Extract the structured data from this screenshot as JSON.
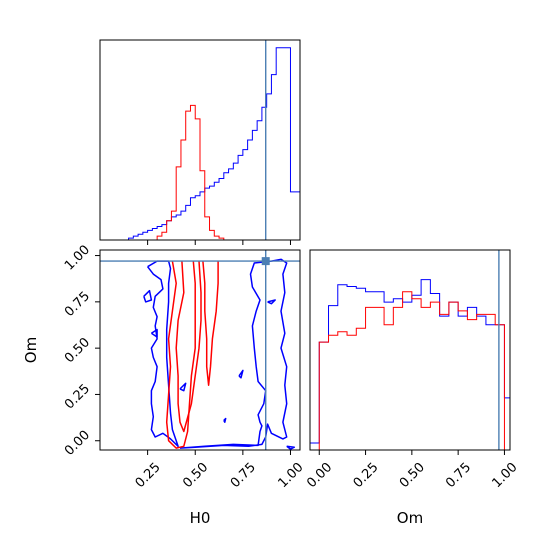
{
  "chart_data": [
    {
      "type": "histogram",
      "panel": "H0 marginal",
      "xlim": [
        0.0,
        1.05
      ],
      "x_ticks": [
        0.25,
        0.5,
        0.75,
        1.0
      ],
      "truth": 0.87,
      "series": [
        {
          "color": "#0000ff",
          "bin_edges": [
            0.15,
            0.175,
            0.2,
            0.225,
            0.25,
            0.275,
            0.3,
            0.325,
            0.35,
            0.375,
            0.4,
            0.425,
            0.45,
            0.475,
            0.5,
            0.525,
            0.55,
            0.575,
            0.6,
            0.625,
            0.65,
            0.675,
            0.7,
            0.725,
            0.75,
            0.775,
            0.8,
            0.825,
            0.85,
            0.875,
            0.9,
            0.925,
            0.95,
            0.975,
            1.0,
            1.025,
            1.05
          ],
          "values": [
            0.01,
            0.02,
            0.03,
            0.04,
            0.05,
            0.06,
            0.07,
            0.08,
            0.1,
            0.12,
            0.13,
            0.15,
            0.18,
            0.22,
            0.23,
            0.25,
            0.27,
            0.28,
            0.3,
            0.32,
            0.35,
            0.37,
            0.4,
            0.44,
            0.47,
            0.52,
            0.57,
            0.62,
            0.69,
            0.76,
            0.86,
            1.0,
            1.0,
            1.0,
            0.25,
            0.25
          ]
        },
        {
          "color": "#ff0000",
          "bin_edges": [
            0.3,
            0.325,
            0.35,
            0.375,
            0.4,
            0.425,
            0.45,
            0.475,
            0.5,
            0.525,
            0.55,
            0.575,
            0.6,
            0.625,
            0.65
          ],
          "values": [
            0.02,
            0.04,
            0.1,
            0.15,
            0.38,
            0.52,
            0.67,
            0.7,
            0.63,
            0.36,
            0.12,
            0.05,
            0.02,
            0.01
          ]
        }
      ]
    },
    {
      "type": "contour",
      "panel": "H0 vs Om joint",
      "xlabel": "H0",
      "ylabel": "Om",
      "xlim": [
        0.0,
        1.05
      ],
      "ylim": [
        -0.05,
        1.03
      ],
      "x_ticks": [
        0.25,
        0.5,
        0.75,
        1.0
      ],
      "x_tick_labels": [
        "0.25",
        "0.50",
        "0.75",
        "1.00"
      ],
      "y_ticks": [
        0.0,
        0.25,
        0.5,
        0.75,
        1.0
      ],
      "y_tick_labels": [
        "0.00",
        "0.25",
        "0.50",
        "0.75",
        "1.00"
      ],
      "truth": {
        "x": 0.87,
        "y": 0.97
      },
      "series": [
        {
          "color": "#0000ff",
          "contours": [
            [
              [
                0.25,
                0.94
              ],
              [
                0.28,
                0.9
              ],
              [
                0.32,
                0.87
              ],
              [
                0.33,
                0.82
              ],
              [
                0.29,
                0.78
              ],
              [
                0.28,
                0.72
              ],
              [
                0.3,
                0.67
              ],
              [
                0.29,
                0.62
              ],
              [
                0.3,
                0.55
              ],
              [
                0.27,
                0.5
              ],
              [
                0.28,
                0.45
              ],
              [
                0.3,
                0.4
              ],
              [
                0.29,
                0.32
              ],
              [
                0.27,
                0.27
              ],
              [
                0.27,
                0.2
              ],
              [
                0.28,
                0.13
              ],
              [
                0.27,
                0.06
              ],
              [
                0.29,
                0.02
              ],
              [
                0.33,
                0.04
              ],
              [
                0.37,
                0.01
              ],
              [
                0.41,
                -0.03
              ],
              [
                0.38,
                0.06
              ],
              [
                0.37,
                0.15
              ],
              [
                0.36,
                0.3
              ],
              [
                0.35,
                0.45
              ],
              [
                0.35,
                0.6
              ],
              [
                0.36,
                0.75
              ],
              [
                0.36,
                0.85
              ],
              [
                0.37,
                0.93
              ],
              [
                0.36,
                0.97
              ],
              [
                0.3,
                0.97
              ],
              [
                0.25,
                0.94
              ]
            ],
            [
              [
                0.42,
                -0.04
              ],
              [
                0.55,
                -0.03
              ],
              [
                0.7,
                -0.02
              ],
              [
                0.83,
                -0.025
              ],
              [
                0.84,
                0.05
              ],
              [
                0.85,
                0.08
              ],
              [
                0.84,
                0.1
              ],
              [
                0.83,
                0.14
              ],
              [
                0.86,
                0.2
              ],
              [
                0.87,
                0.27
              ],
              [
                0.83,
                0.32
              ],
              [
                0.82,
                0.4
              ],
              [
                0.81,
                0.5
              ],
              [
                0.8,
                0.62
              ],
              [
                0.82,
                0.7
              ],
              [
                0.84,
                0.76
              ],
              [
                0.8,
                0.83
              ],
              [
                0.79,
                0.9
              ],
              [
                0.81,
                0.96
              ],
              [
                0.9,
                0.97
              ],
              [
                0.95,
                0.98
              ],
              [
                0.98,
                0.96
              ],
              [
                0.96,
                0.9
              ],
              [
                0.97,
                0.8
              ],
              [
                0.95,
                0.7
              ],
              [
                0.97,
                0.58
              ],
              [
                0.95,
                0.5
              ],
              [
                0.98,
                0.4
              ],
              [
                0.97,
                0.3
              ],
              [
                0.98,
                0.2
              ],
              [
                0.96,
                0.1
              ],
              [
                0.98,
                0.02
              ],
              [
                0.96,
                0.01
              ],
              [
                0.9,
                0.04
              ],
              [
                0.88,
                0.09
              ],
              [
                0.87,
                0.02
              ],
              [
                0.85,
                -0.02
              ],
              [
                0.78,
                -0.03
              ],
              [
                0.65,
                -0.025
              ],
              [
                0.5,
                -0.035
              ],
              [
                0.42,
                -0.04
              ]
            ],
            [
              [
                0.23,
                0.78
              ],
              [
                0.26,
                0.81
              ],
              [
                0.27,
                0.76
              ],
              [
                0.24,
                0.75
              ],
              [
                0.23,
                0.78
              ]
            ],
            [
              [
                0.27,
                0.58
              ],
              [
                0.3,
                0.6
              ],
              [
                0.3,
                0.56
              ],
              [
                0.27,
                0.58
              ]
            ],
            [
              [
                0.42,
                0.28
              ],
              [
                0.45,
                0.31
              ],
              [
                0.44,
                0.27
              ],
              [
                0.42,
                0.28
              ]
            ],
            [
              [
                0.73,
                0.35
              ],
              [
                0.75,
                0.38
              ],
              [
                0.74,
                0.34
              ],
              [
                0.73,
                0.35
              ]
            ],
            [
              [
                0.88,
                0.75
              ],
              [
                0.92,
                0.76
              ],
              [
                0.9,
                0.74
              ],
              [
                0.88,
                0.75
              ]
            ],
            [
              [
                0.65,
                0.11
              ],
              [
                0.66,
                0.12
              ],
              [
                0.655,
                0.1
              ],
              [
                0.65,
                0.11
              ]
            ],
            [
              [
                0.98,
                -0.03
              ],
              [
                1.02,
                -0.035
              ],
              [
                1.0,
                -0.045
              ],
              [
                0.98,
                -0.03
              ]
            ]
          ]
        },
        {
          "color": "#ff0000",
          "contours": [
            [
              [
                0.38,
                0.97
              ],
              [
                0.4,
                0.85
              ],
              [
                0.38,
                0.7
              ],
              [
                0.36,
                0.55
              ],
              [
                0.37,
                0.4
              ],
              [
                0.36,
                0.25
              ],
              [
                0.35,
                0.1
              ],
              [
                0.36,
                0.0
              ],
              [
                0.4,
                -0.04
              ],
              [
                0.44,
                -0.03
              ],
              [
                0.46,
                0.05
              ],
              [
                0.47,
                0.2
              ],
              [
                0.48,
                0.35
              ],
              [
                0.5,
                0.5
              ],
              [
                0.5,
                0.7
              ],
              [
                0.5,
                0.85
              ],
              [
                0.49,
                0.97
              ]
            ],
            [
              [
                0.43,
                0.97
              ],
              [
                0.44,
                0.8
              ],
              [
                0.41,
                0.65
              ],
              [
                0.4,
                0.5
              ],
              [
                0.41,
                0.35
              ],
              [
                0.41,
                0.2
              ],
              [
                0.42,
                0.1
              ],
              [
                0.44,
                0.05
              ],
              [
                0.48,
                0.2
              ],
              [
                0.5,
                0.35
              ],
              [
                0.52,
                0.5
              ],
              [
                0.53,
                0.65
              ],
              [
                0.53,
                0.8
              ],
              [
                0.52,
                0.97
              ]
            ],
            [
              [
                0.54,
                0.97
              ],
              [
                0.55,
                0.85
              ],
              [
                0.55,
                0.7
              ],
              [
                0.56,
                0.55
              ],
              [
                0.56,
                0.4
              ],
              [
                0.57,
                0.3
              ],
              [
                0.58,
                0.4
              ],
              [
                0.59,
                0.55
              ],
              [
                0.61,
                0.7
              ],
              [
                0.62,
                0.85
              ],
              [
                0.62,
                0.97
              ]
            ]
          ]
        }
      ]
    },
    {
      "type": "histogram",
      "panel": "Om marginal",
      "xlabel": "Om",
      "xlim": [
        -0.05,
        1.03
      ],
      "x_ticks": [
        0.0,
        0.25,
        0.5,
        0.75,
        1.0
      ],
      "x_tick_labels": [
        "0.00",
        "0.25",
        "0.50",
        "0.75",
        "1.00"
      ],
      "truth": 0.97,
      "series": [
        {
          "color": "#0000ff",
          "bin_edges": [
            -0.05,
            0.0,
            0.05,
            0.1,
            0.15,
            0.2,
            0.25,
            0.3,
            0.35,
            0.4,
            0.45,
            0.5,
            0.55,
            0.6,
            0.65,
            0.7,
            0.75,
            0.8,
            0.85,
            0.9,
            0.95,
            1.0,
            1.03
          ],
          "values": [
            0.04,
            0.62,
            0.83,
            0.95,
            0.94,
            0.93,
            0.91,
            0.91,
            0.85,
            0.87,
            0.85,
            0.89,
            0.98,
            0.9,
            0.77,
            0.85,
            0.77,
            0.82,
            0.77,
            0.72,
            0.72,
            0.3
          ]
        },
        {
          "color": "#ff0000",
          "bin_edges": [
            0.0,
            0.05,
            0.1,
            0.15,
            0.2,
            0.25,
            0.3,
            0.35,
            0.4,
            0.45,
            0.5,
            0.55,
            0.6,
            0.65,
            0.7,
            0.75,
            0.8,
            0.85,
            0.9,
            0.95,
            1.0
          ],
          "values": [
            0.62,
            0.66,
            0.68,
            0.66,
            0.7,
            0.82,
            0.82,
            0.72,
            0.82,
            0.91,
            0.87,
            0.82,
            0.85,
            0.78,
            0.85,
            0.8,
            0.75,
            0.78,
            0.78,
            0.72
          ]
        }
      ]
    }
  ],
  "colors": {
    "truth_line": "#4c7fb3",
    "series_a": "#0000ff",
    "series_b": "#ff0000"
  }
}
